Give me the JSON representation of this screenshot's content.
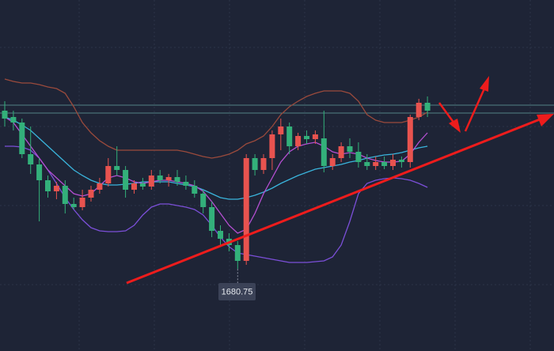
{
  "chart_data": {
    "type": "candlestick",
    "ylim": [
      1660,
      1748.8
    ],
    "up_color": "#e8534f",
    "down_color": "#33b07a",
    "open": [
      1720.8,
      1719.2,
      1717.8,
      1709.8,
      1707.2,
      1703.2,
      1700.4,
      1701.8,
      1697.2,
      1696.4,
      1698.8,
      1700.8,
      1702.4,
      1706.8,
      1705.8,
      1700.8,
      1702.4,
      1701.6,
      1704.4,
      1703.2,
      1704.0,
      1702.8,
      1701.8,
      1699.8,
      1696.4,
      1690.4,
      1688.4,
      1686.8,
      1682.8,
      1708.8,
      1705.8,
      1708.8,
      1714.8,
      1716.8,
      1711.8,
      1714.4,
      1713.6,
      1713.8,
      1706.8,
      1708.8,
      1711.8,
      1710.4,
      1707.8,
      1706.8,
      1707.8,
      1706.8,
      1708.4,
      1707.8,
      1719.2,
      1722.8
    ],
    "high": [
      1723.2,
      1720.8,
      1718.8,
      1716.8,
      1708.8,
      1704.4,
      1702.8,
      1703.2,
      1698.8,
      1700.8,
      1701.8,
      1703.8,
      1708.8,
      1711.8,
      1706.8,
      1703.2,
      1703.8,
      1705.8,
      1705.8,
      1704.8,
      1705.8,
      1704.4,
      1703.2,
      1700.8,
      1697.8,
      1691.8,
      1689.8,
      1687.8,
      1709.8,
      1709.8,
      1709.8,
      1715.8,
      1718.8,
      1717.8,
      1715.2,
      1715.8,
      1715.8,
      1720.8,
      1709.8,
      1712.8,
      1713.8,
      1712.8,
      1709.8,
      1709.2,
      1709.2,
      1709.8,
      1709.2,
      1719.8,
      1723.8,
      1724.4
    ],
    "low": [
      1716.8,
      1715.8,
      1708.8,
      1704.8,
      1692.8,
      1698.8,
      1698.4,
      1694.8,
      1695.8,
      1695.6,
      1697.8,
      1699.8,
      1701.6,
      1704.4,
      1698.8,
      1699.8,
      1700.8,
      1700.8,
      1702.4,
      1701.6,
      1701.8,
      1700.8,
      1698.8,
      1694.8,
      1688.8,
      1686.8,
      1685.2,
      1680.75,
      1681.8,
      1704.4,
      1704.8,
      1705.8,
      1710.8,
      1709.8,
      1710.8,
      1712.4,
      1712.4,
      1705.2,
      1705.8,
      1707.8,
      1708.8,
      1706.4,
      1705.8,
      1705.8,
      1706.0,
      1705.8,
      1706.4,
      1706.4,
      1718.4,
      1719.2
    ],
    "close": [
      1718.8,
      1717.8,
      1709.8,
      1707.2,
      1703.2,
      1700.4,
      1701.8,
      1697.2,
      1696.4,
      1698.8,
      1700.8,
      1702.4,
      1706.8,
      1705.8,
      1700.8,
      1702.4,
      1701.6,
      1704.4,
      1703.2,
      1704.0,
      1702.8,
      1701.8,
      1699.8,
      1696.4,
      1690.4,
      1688.4,
      1686.8,
      1682.8,
      1708.8,
      1705.8,
      1708.8,
      1714.8,
      1716.8,
      1711.8,
      1714.4,
      1713.6,
      1714.8,
      1706.8,
      1708.8,
      1711.8,
      1710.4,
      1707.8,
      1706.8,
      1707.8,
      1706.8,
      1708.4,
      1707.8,
      1719.2,
      1722.8,
      1720.8
    ],
    "series": [
      {
        "color": "#9a4a3c",
        "values": [
          1728.8,
          1728.2,
          1727.8,
          1727.8,
          1727.4,
          1726.8,
          1726.4,
          1725.2,
          1721.8,
          1717.8,
          1715.2,
          1713.2,
          1711.8,
          1710.8,
          1710.8,
          1710.8,
          1710.8,
          1710.8,
          1710.8,
          1710.8,
          1710.8,
          1710.4,
          1709.8,
          1709.2,
          1708.8,
          1709.2,
          1709.8,
          1710.8,
          1712.4,
          1713.2,
          1714.4,
          1716.8,
          1719.8,
          1721.8,
          1723.2,
          1724.4,
          1725.2,
          1725.8,
          1725.8,
          1725.8,
          1725.2,
          1723.2,
          1719.8,
          1718.4,
          1717.8,
          1717.8,
          1717.8,
          1718.4,
          1719.2,
          1720.4
        ]
      },
      {
        "color": "#7b4fd8",
        "values": [
          1711.8,
          1711.8,
          1711.6,
          1710.8,
          1708.8,
          1705.8,
          1702.4,
          1698.8,
          1695.8,
          1693.2,
          1691.2,
          1690.4,
          1690.2,
          1690.2,
          1690.4,
          1691.8,
          1694.4,
          1696.4,
          1697.2,
          1697.2,
          1696.8,
          1696.4,
          1695.8,
          1694.4,
          1691.8,
          1688.8,
          1686.4,
          1684.8,
          1684.4,
          1684.0,
          1683.6,
          1683.2,
          1682.8,
          1682.4,
          1682.4,
          1682.4,
          1682.6,
          1682.8,
          1683.8,
          1686.8,
          1692.8,
          1699.8,
          1702.4,
          1703.2,
          1703.6,
          1703.8,
          1703.6,
          1703.2,
          1702.4,
          1701.4
        ]
      },
      {
        "color": "#3ab4dc",
        "values": [
          1719.2,
          1718.4,
          1717.2,
          1715.8,
          1713.8,
          1711.8,
          1709.8,
          1707.8,
          1705.8,
          1704.4,
          1703.2,
          1702.4,
          1702.0,
          1702.0,
          1702.2,
          1702.4,
          1702.8,
          1702.8,
          1702.8,
          1702.8,
          1702.4,
          1702.0,
          1701.6,
          1700.8,
          1699.8,
          1698.8,
          1698.4,
          1698.4,
          1698.8,
          1699.4,
          1700.2,
          1701.2,
          1702.4,
          1703.4,
          1704.4,
          1705.2,
          1706.0,
          1706.4,
          1706.8,
          1707.2,
          1707.8,
          1708.2,
          1708.8,
          1709.2,
          1709.6,
          1709.8,
          1710.2,
          1710.8,
          1711.4,
          1711.8
        ]
      },
      {
        "color": "#b54fd2",
        "values": [
          1719.2,
          1717.8,
          1714.8,
          1711.8,
          1708.8,
          1705.8,
          1703.8,
          1701.8,
          1699.8,
          1699.2,
          1699.8,
          1701.8,
          1703.8,
          1704.4,
          1703.8,
          1702.8,
          1702.4,
          1702.8,
          1703.2,
          1703.2,
          1702.8,
          1702.4,
          1701.8,
          1700.4,
          1697.8,
          1694.8,
          1691.8,
          1689.8,
          1690.8,
          1694.8,
          1699.8,
          1703.8,
          1707.8,
          1710.4,
          1711.8,
          1712.4,
          1712.8,
          1711.8,
          1710.4,
          1709.8,
          1710.2,
          1709.8,
          1708.8,
          1708.2,
          1707.8,
          1707.8,
          1708.0,
          1709.8,
          1712.8,
          1715.2
        ]
      }
    ],
    "hlines": [
      1722.2,
      1720.2
    ],
    "hline_color": "#5e9a9a",
    "annotation": "1680.75"
  }
}
